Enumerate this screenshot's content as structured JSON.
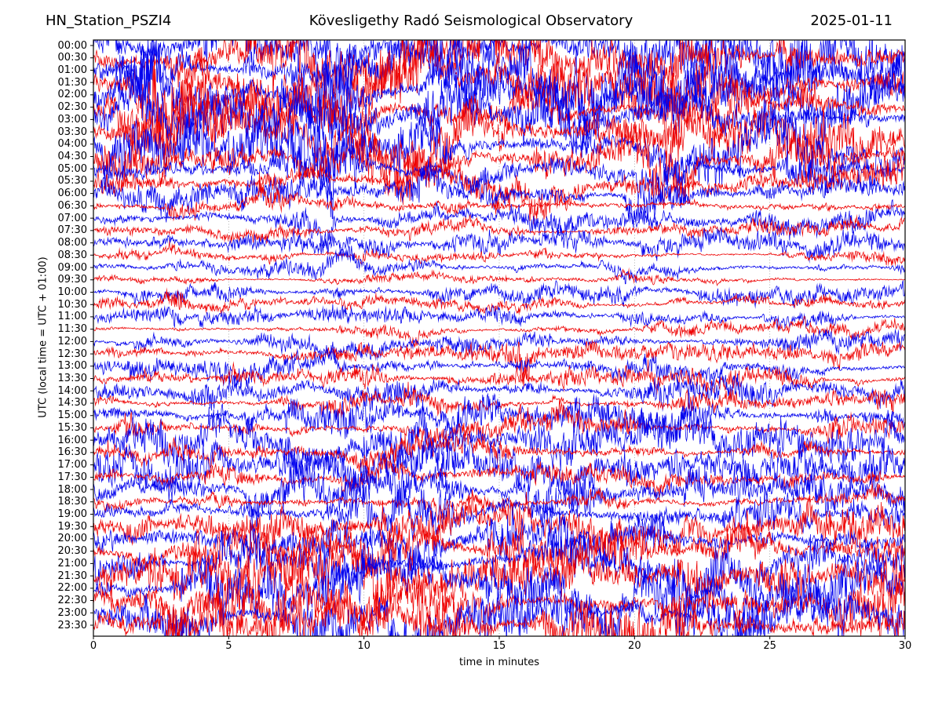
{
  "header": {
    "station": "HN_Station_PSZI4",
    "observatory": "Kövesligethy Radó Seismological Observatory",
    "date": "2025-01-11"
  },
  "axes": {
    "xlabel": "time in minutes",
    "ylabel": "UTC (local time = UTC + 01:00)",
    "x_ticks": [
      0,
      5,
      10,
      15,
      20,
      25,
      30
    ],
    "x_range": [
      0,
      30
    ],
    "y_tick_times": [
      "00:00",
      "00:30",
      "01:00",
      "01:30",
      "02:00",
      "02:30",
      "03:00",
      "03:30",
      "04:00",
      "04:30",
      "05:00",
      "05:30",
      "06:00",
      "06:30",
      "07:00",
      "07:30",
      "08:00",
      "08:30",
      "09:00",
      "09:30",
      "10:00",
      "10:30",
      "11:00",
      "11:30",
      "12:00",
      "12:30",
      "13:00",
      "13:30",
      "14:00",
      "14:30",
      "15:00",
      "15:30",
      "16:00",
      "16:30",
      "17:00",
      "17:30",
      "18:00",
      "18:30",
      "19:00",
      "19:30",
      "20:00",
      "20:30",
      "21:00",
      "21:30",
      "22:00",
      "22:30",
      "23:00",
      "23:30"
    ]
  },
  "colors": {
    "trace_red": "#ee0000",
    "trace_blue": "#0000ee",
    "grid": "#999999",
    "frame": "#000000",
    "background": "#ffffff",
    "text": "#000000"
  },
  "chart_data": {
    "type": "line",
    "subtype": "helicorder-dayplot",
    "title": "Kövesligethy Radó Seismological Observatory",
    "station": "HN_Station_PSZI4",
    "date": "2025-01-11",
    "xlabel": "time in minutes",
    "ylabel": "UTC (local time = UTC + 01:00)",
    "xlim": [
      0,
      30
    ],
    "minutes_per_line": 30,
    "lines_count": 48,
    "grid": "vertical-dotted-every-5-min",
    "legend": "none",
    "rows": [
      {
        "label": "00:00",
        "color": "blue",
        "amp": 30,
        "bursts": []
      },
      {
        "label": "00:30",
        "color": "red",
        "amp": 30,
        "bursts": []
      },
      {
        "label": "01:00",
        "color": "blue",
        "amp": 32,
        "bursts": [
          [
            2,
            1.2,
            1.3
          ]
        ]
      },
      {
        "label": "01:30",
        "color": "red",
        "amp": 32,
        "bursts": [
          [
            2.5,
            1.0,
            1.1
          ]
        ]
      },
      {
        "label": "02:00",
        "color": "blue",
        "amp": 32,
        "bursts": [
          [
            2,
            1.0,
            1.2
          ],
          [
            8.5,
            0.8,
            0.9
          ]
        ]
      },
      {
        "label": "02:30",
        "color": "red",
        "amp": 30,
        "bursts": []
      },
      {
        "label": "03:00",
        "color": "blue",
        "amp": 30,
        "bursts": []
      },
      {
        "label": "03:30",
        "color": "red",
        "amp": 28,
        "bursts": []
      },
      {
        "label": "04:00",
        "color": "blue",
        "amp": 30,
        "bursts": [
          [
            8.3,
            0.7,
            1.1
          ]
        ]
      },
      {
        "label": "04:30",
        "color": "red",
        "amp": 26,
        "bursts": []
      },
      {
        "label": "05:00",
        "color": "blue",
        "amp": 26,
        "bursts": []
      },
      {
        "label": "05:30",
        "color": "red",
        "amp": 20,
        "bursts": []
      },
      {
        "label": "06:00",
        "color": "blue",
        "amp": 18,
        "bursts": []
      },
      {
        "label": "06:30",
        "color": "red",
        "amp": 13,
        "bursts": []
      },
      {
        "label": "07:00",
        "color": "blue",
        "amp": 12,
        "bursts": [
          [
            8.4,
            0.6,
            1.4
          ]
        ]
      },
      {
        "label": "07:30",
        "color": "red",
        "amp": 7,
        "bursts": []
      },
      {
        "label": "08:00",
        "color": "blue",
        "amp": 11,
        "bursts": []
      },
      {
        "label": "08:30",
        "color": "red",
        "amp": 6,
        "bursts": []
      },
      {
        "label": "09:00",
        "color": "blue",
        "amp": 10,
        "bursts": []
      },
      {
        "label": "09:30",
        "color": "red",
        "amp": 5,
        "bursts": []
      },
      {
        "label": "10:00",
        "color": "blue",
        "amp": 9,
        "bursts": []
      },
      {
        "label": "10:30",
        "color": "red",
        "amp": 6,
        "bursts": [
          [
            3,
            0.5,
            1.4
          ]
        ]
      },
      {
        "label": "11:00",
        "color": "blue",
        "amp": 9,
        "bursts": []
      },
      {
        "label": "11:30",
        "color": "red",
        "amp": 7,
        "bursts": []
      },
      {
        "label": "12:00",
        "color": "blue",
        "amp": 10,
        "bursts": []
      },
      {
        "label": "12:30",
        "color": "red",
        "amp": 9,
        "bursts": [
          [
            15.8,
            0.5,
            3.2
          ]
        ]
      },
      {
        "label": "13:00",
        "color": "blue",
        "amp": 13,
        "bursts": [
          [
            15.8,
            0.6,
            1.4
          ]
        ]
      },
      {
        "label": "13:30",
        "color": "red",
        "amp": 11,
        "bursts": []
      },
      {
        "label": "14:00",
        "color": "blue",
        "amp": 17,
        "bursts": []
      },
      {
        "label": "14:30",
        "color": "red",
        "amp": 13,
        "bursts": []
      },
      {
        "label": "15:00",
        "color": "blue",
        "amp": 20,
        "bursts": []
      },
      {
        "label": "15:30",
        "color": "red",
        "amp": 15,
        "bursts": []
      },
      {
        "label": "16:00",
        "color": "blue",
        "amp": 22,
        "bursts": []
      },
      {
        "label": "16:30",
        "color": "red",
        "amp": 14,
        "bursts": []
      },
      {
        "label": "17:00",
        "color": "blue",
        "amp": 22,
        "bursts": []
      },
      {
        "label": "17:30",
        "color": "red",
        "amp": 11,
        "bursts": []
      },
      {
        "label": "18:00",
        "color": "blue",
        "amp": 24,
        "bursts": []
      },
      {
        "label": "18:30",
        "color": "red",
        "amp": 16,
        "bursts": []
      },
      {
        "label": "19:00",
        "color": "blue",
        "amp": 26,
        "bursts": [
          [
            21.5,
            1.0,
            0.9
          ]
        ]
      },
      {
        "label": "19:30",
        "color": "red",
        "amp": 22,
        "bursts": []
      },
      {
        "label": "20:00",
        "color": "blue",
        "amp": 28,
        "bursts": []
      },
      {
        "label": "20:30",
        "color": "red",
        "amp": 26,
        "bursts": []
      },
      {
        "label": "21:00",
        "color": "blue",
        "amp": 30,
        "bursts": [
          [
            21.8,
            1.2,
            0.9
          ]
        ]
      },
      {
        "label": "21:30",
        "color": "red",
        "amp": 28,
        "bursts": []
      },
      {
        "label": "22:00",
        "color": "blue",
        "amp": 30,
        "bursts": []
      },
      {
        "label": "22:30",
        "color": "red",
        "amp": 28,
        "bursts": []
      },
      {
        "label": "23:00",
        "color": "blue",
        "amp": 30,
        "bursts": []
      },
      {
        "label": "23:30",
        "color": "red",
        "amp": 28,
        "bursts": []
      }
    ]
  }
}
